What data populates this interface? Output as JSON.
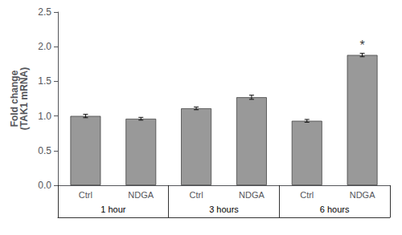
{
  "chart_data": {
    "type": "bar",
    "ylabel": "Fold change\n(TAK1 mRNA)",
    "categories": [
      "Ctrl",
      "NDGA",
      "Ctrl",
      "NDGA",
      "Ctrl",
      "NDGA"
    ],
    "values": [
      1.0,
      0.96,
      1.11,
      1.27,
      0.93,
      1.88
    ],
    "errors": [
      0.025,
      0.02,
      0.02,
      0.03,
      0.02,
      0.025
    ],
    "color": "#999999",
    "group_labels": [
      "1 hour",
      "3 hours",
      "6 hours"
    ],
    "annotations": [
      {
        "text": "*",
        "index": 5,
        "y": 1.93
      }
    ],
    "ylim": [
      0,
      2.5
    ],
    "yticks": [
      {
        "value": 0,
        "label": "0.0"
      },
      {
        "value": 0.5,
        "label": "0.5"
      },
      {
        "value": 1.0,
        "label": "1.0"
      },
      {
        "value": 1.5,
        "label": "1.5"
      },
      {
        "value": 2.0,
        "label": "2.0"
      },
      {
        "value": 2.5,
        "label": "2.5"
      }
    ],
    "grid": false
  }
}
